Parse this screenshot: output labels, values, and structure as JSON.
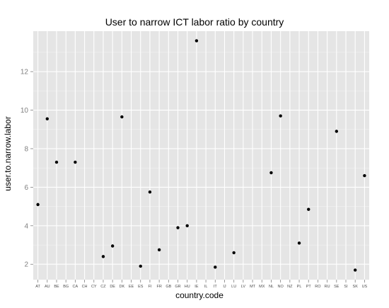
{
  "chart_data": {
    "type": "scatter",
    "title": "User to narrow ICT labor ratio by country",
    "xlabel": "country.code",
    "ylabel": "user.to.narrow.labor",
    "ylim": [
      1.2,
      14.1
    ],
    "yticks": [
      2,
      4,
      6,
      8,
      10,
      12
    ],
    "grid": true,
    "categories": [
      "AT",
      "AU",
      "BE",
      "BG",
      "CA",
      "CH",
      "CY",
      "CZ",
      "DE",
      "DK",
      "EE",
      "ES",
      "FI",
      "FR",
      "GB",
      "GR",
      "HU",
      "IE",
      "IL",
      "IT",
      "IJ",
      "LU",
      "LV",
      "MT",
      "MX",
      "NL",
      "NO",
      "NZ",
      "PL",
      "PT",
      "RO",
      "RU",
      "SE",
      "SI",
      "SK",
      "US"
    ],
    "points": [
      {
        "x": "AT",
        "y": 5.1
      },
      {
        "x": "AU",
        "y": 9.55
      },
      {
        "x": "BE",
        "y": 7.3
      },
      {
        "x": "CA",
        "y": 7.3
      },
      {
        "x": "CZ",
        "y": 2.4
      },
      {
        "x": "DE",
        "y": 2.95
      },
      {
        "x": "DK",
        "y": 9.65
      },
      {
        "x": "ES",
        "y": 1.9
      },
      {
        "x": "FI",
        "y": 5.75
      },
      {
        "x": "FR",
        "y": 2.75
      },
      {
        "x": "GR",
        "y": 3.9
      },
      {
        "x": "HU",
        "y": 4.0
      },
      {
        "x": "IE",
        "y": 13.6
      },
      {
        "x": "IT",
        "y": 1.85
      },
      {
        "x": "LU",
        "y": 2.6
      },
      {
        "x": "NL",
        "y": 6.75
      },
      {
        "x": "NO",
        "y": 9.7
      },
      {
        "x": "PL",
        "y": 3.1
      },
      {
        "x": "PT",
        "y": 4.85
      },
      {
        "x": "SE",
        "y": 8.9
      },
      {
        "x": "SK",
        "y": 1.7
      },
      {
        "x": "US",
        "y": 6.6
      }
    ],
    "colors": {
      "panel": "#e5e5e5",
      "grid": "#ffffff",
      "point": "#000000"
    }
  }
}
